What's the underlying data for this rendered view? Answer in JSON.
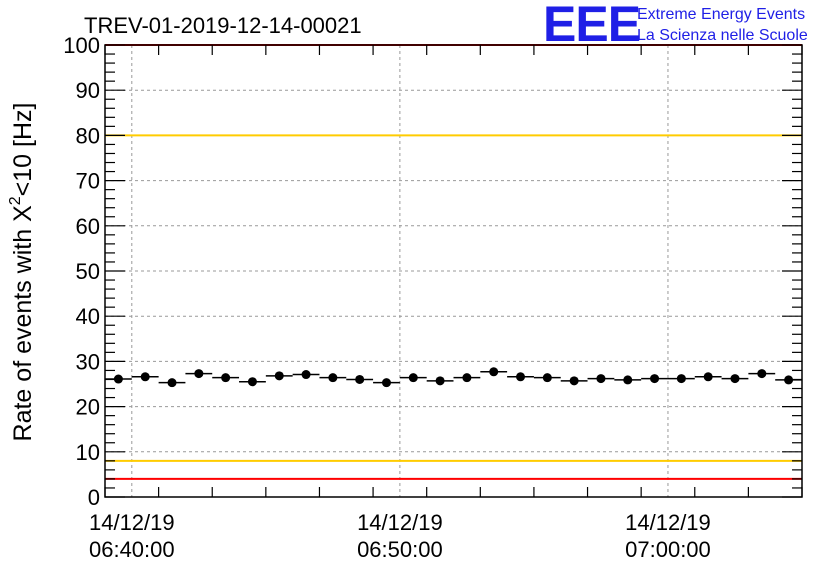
{
  "header": {
    "title": "TREV-01-2019-12-14-00021",
    "logo_text": "EEE",
    "logo_line1": "Extreme Energy Events",
    "logo_line2": "La Scienza nelle Scuole"
  },
  "colors": {
    "red_line": "#ff0000",
    "yellow_line": "#ffcc00",
    "logo": "#1f1fe6",
    "marker": "#000000",
    "grid": "#999999"
  },
  "chart_data": {
    "type": "scatter",
    "title": "TREV-01-2019-12-14-00021",
    "ylabel_main": "Rate of events with X",
    "ylabel_sup": "2",
    "ylabel_tail": "<10 [Hz]",
    "xlabel": "",
    "ylim": [
      0,
      100
    ],
    "xlim_minutes": [
      -1,
      25
    ],
    "yticks": [
      0,
      10,
      20,
      30,
      40,
      50,
      60,
      70,
      80,
      90,
      100
    ],
    "xticks": [
      {
        "minute": 0,
        "date": "14/12/19",
        "time": "06:40:00"
      },
      {
        "minute": 10,
        "date": "14/12/19",
        "time": "06:50:00"
      },
      {
        "minute": 20,
        "date": "14/12/19",
        "time": "07:00:00"
      }
    ],
    "reference_lines": [
      {
        "y": 100,
        "color": "#ff0000"
      },
      {
        "y": 80,
        "color": "#ffcc00"
      },
      {
        "y": 8,
        "color": "#ffcc00"
      },
      {
        "y": 4,
        "color": "#ff0000"
      }
    ],
    "bin_width_minutes": 1,
    "x_minutes": [
      -0.5,
      0.5,
      1.5,
      2.5,
      3.5,
      4.5,
      5.5,
      6.5,
      7.5,
      8.5,
      9.5,
      10.5,
      11.5,
      12.5,
      13.5,
      14.5,
      15.5,
      16.5,
      17.5,
      18.5,
      19.5,
      20.5,
      21.5,
      22.5,
      23.5,
      24.5
    ],
    "values": [
      26.1,
      26.6,
      25.3,
      27.3,
      26.4,
      25.5,
      26.8,
      27.1,
      26.4,
      26.0,
      25.3,
      26.4,
      25.7,
      26.4,
      27.7,
      26.6,
      26.4,
      25.7,
      26.2,
      25.9,
      26.2,
      26.2,
      26.6,
      26.2,
      27.3,
      25.9
    ],
    "grid": true,
    "legend": "none"
  }
}
